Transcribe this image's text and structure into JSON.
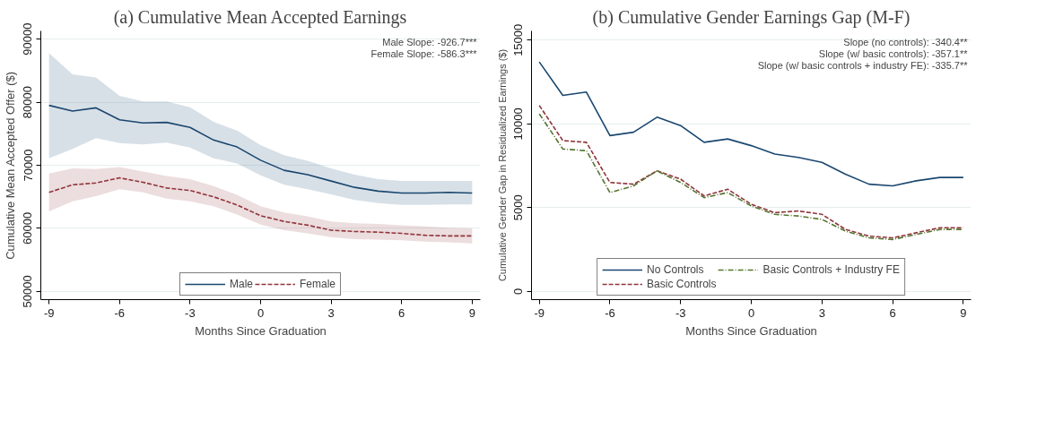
{
  "chart_data": [
    {
      "type": "line",
      "title": "(a) Cumulative Mean Accepted Earnings",
      "xlabel": "Months Since Graduation",
      "ylabel": "Cumulative Mean Accepted Offer ($)",
      "x": [
        -9,
        -8,
        -7,
        -6,
        -5,
        -4,
        -3,
        -2,
        -1,
        0,
        1,
        2,
        3,
        4,
        5,
        6,
        7,
        8,
        9
      ],
      "series": [
        {
          "name": "Male",
          "color": "#1a476f",
          "line_style": "solid",
          "values": [
            79500,
            78600,
            79100,
            77200,
            76700,
            76800,
            76000,
            74000,
            72900,
            70800,
            69200,
            68500,
            67500,
            66500,
            65900,
            65600,
            65600,
            65700,
            65600
          ],
          "upper": [
            87800,
            84400,
            83900,
            81000,
            80100,
            80100,
            79200,
            76900,
            75500,
            73200,
            71600,
            70700,
            69500,
            68500,
            67800,
            67500,
            67500,
            67500,
            67500
          ],
          "lower": [
            71100,
            72600,
            74300,
            73500,
            73300,
            73600,
            72800,
            71100,
            70300,
            68400,
            66900,
            66200,
            65400,
            64500,
            64000,
            63700,
            63700,
            63800,
            63800
          ]
        },
        {
          "name": "Female",
          "color": "#90353b",
          "line_style": "dashed",
          "values": [
            65700,
            66900,
            67200,
            68000,
            67300,
            66400,
            66000,
            65000,
            63700,
            62000,
            61100,
            60500,
            59700,
            59500,
            59400,
            59200,
            58900,
            58800,
            58800
          ],
          "upper": [
            68700,
            69500,
            69400,
            69700,
            69000,
            68300,
            67800,
            66700,
            65300,
            63500,
            62500,
            61900,
            61100,
            60800,
            60700,
            60500,
            60300,
            60100,
            60000
          ],
          "lower": [
            62700,
            64300,
            65100,
            66200,
            65700,
            64700,
            64300,
            63500,
            62200,
            60600,
            59700,
            59200,
            58600,
            58300,
            58200,
            58100,
            57900,
            57800,
            57600
          ]
        }
      ],
      "xlim": [
        -9.35,
        9.35
      ],
      "xticks": [
        -9,
        -6,
        -3,
        0,
        3,
        6,
        9
      ],
      "ylim": [
        48700,
        91300
      ],
      "yticks": [
        50000,
        60000,
        70000,
        80000,
        90000
      ],
      "grid": "y",
      "legend": "bottom",
      "annotations": [
        "Male Slope: -926.7***",
        "Female Slope: -586.3***"
      ]
    },
    {
      "type": "line",
      "title": "(b) Cumulative Gender Earnings Gap (M-F)",
      "xlabel": "Months Since Graduation",
      "ylabel": "Cumulative Gender Gap in Residualized Earnings ($)",
      "x": [
        -9,
        -8,
        -7,
        -6,
        -5,
        -4,
        -3,
        -2,
        -1,
        0,
        1,
        2,
        3,
        4,
        5,
        6,
        7,
        8,
        9
      ],
      "series": [
        {
          "name": "No Controls",
          "color": "#1a476f",
          "line_style": "solid",
          "values": [
            13700,
            11700,
            11900,
            9300,
            9500,
            10400,
            9900,
            8900,
            9100,
            8700,
            8200,
            8000,
            7700,
            7000,
            6400,
            6300,
            6600,
            6800,
            6800
          ]
        },
        {
          "name": "Basic Controls",
          "color": "#90353b",
          "line_style": "dashed",
          "values": [
            11100,
            9000,
            8900,
            6500,
            6400,
            7200,
            6700,
            5700,
            6100,
            5200,
            4700,
            4800,
            4600,
            3700,
            3300,
            3200,
            3500,
            3800,
            3800
          ]
        },
        {
          "name": "Basic Controls + Industry FE",
          "color": "#55752f",
          "line_style": "dashdot",
          "values": [
            10600,
            8500,
            8400,
            5900,
            6300,
            7200,
            6500,
            5600,
            5900,
            5100,
            4600,
            4500,
            4300,
            3600,
            3200,
            3100,
            3400,
            3700,
            3700
          ]
        }
      ],
      "xlim": [
        -9.33,
        9.33
      ],
      "xticks": [
        -9,
        -6,
        -3,
        0,
        3,
        6,
        9
      ],
      "ylim": [
        -490,
        15550
      ],
      "yticks": [
        0,
        5000,
        10000,
        15000
      ],
      "grid": "y",
      "legend": "bottom",
      "annotations": [
        "Slope (no controls): -340.4**",
        "Slope (w/ basic controls): -357.1**",
        "Slope (w/ basic controls + industry FE): -335.7**"
      ]
    }
  ]
}
